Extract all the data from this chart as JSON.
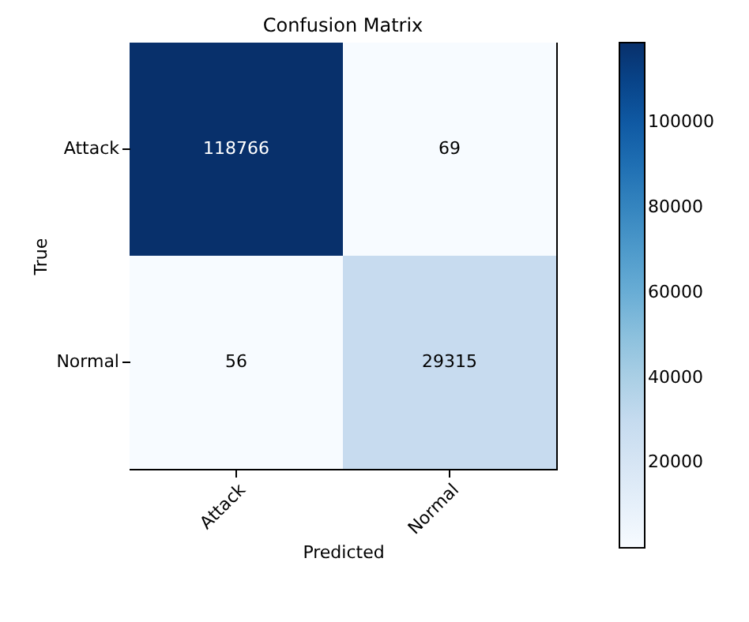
{
  "chart_data": {
    "type": "heatmap",
    "title": "Confusion Matrix",
    "xlabel": "Predicted",
    "ylabel": "True",
    "categories": [
      "Attack",
      "Normal"
    ],
    "y_categories": [
      "Attack",
      "Normal"
    ],
    "cells": [
      [
        118766,
        69
      ],
      [
        56,
        29315
      ]
    ],
    "data_labels": true,
    "clim": [
      56,
      118766
    ],
    "cticks": [
      20000,
      40000,
      60000,
      80000,
      100000
    ]
  }
}
